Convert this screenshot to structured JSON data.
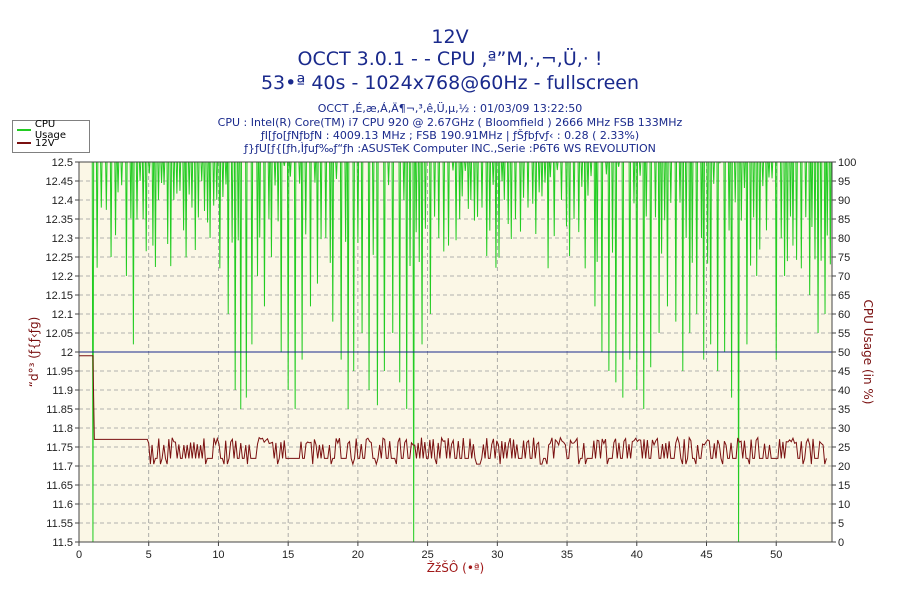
{
  "header": {
    "title_line1": "12V",
    "title_line2": "OCCT 3.0.1 -  - CPU ,ª”M,·,¬,Ü,· !",
    "title_line3": "53•ª 40s - 1024x768@60Hz - fullscreen",
    "info_line1": "OCCT ,É,æ,Á,Ä¶¬,³,ê,Ü,µ,½ : 01/03/09 13:22:50",
    "info_line2": "CPU : Intel(R) Core(TM) i7 CPU 920 @ 2.67GHz ( Bloomfield ) 2666 MHz FSB 133MHz",
    "info_line3": "ƒI[ƒo[ƒNƒbƒN : 4009.13 MHz ; FSB 190.91MHz | ƒŠƒbƒvƒ‹ : 0.28 ( 2.33%)",
    "info_line4": "ƒ}ƒU[ƒ{[ƒh,Ìƒuƒ‰ƒ“ƒh :ASUSTeK Computer INC.,Serie :P6T6 WS REVOLUTION"
  },
  "legend": {
    "items": [
      {
        "label": "CPU Usage",
        "color": "#22cc22"
      },
      {
        "label": "12V",
        "color": "#7a1010"
      }
    ]
  },
  "chart_data": {
    "type": "line",
    "title": "12V",
    "xlabel": "ŽžŠÔ (•ª)",
    "ylabel_left": "“d°³ (ƒ{ƒ‹ƒg)",
    "ylabel_right": "CPU Usage (in %)",
    "xlim": [
      0,
      54
    ],
    "x_ticks": [
      0,
      5,
      10,
      15,
      20,
      25,
      30,
      35,
      40,
      45,
      50
    ],
    "ylim_left": [
      11.5,
      12.5
    ],
    "y_ticks_left": [
      11.5,
      11.55,
      11.6,
      11.65,
      11.7,
      11.75,
      11.8,
      11.85,
      11.9,
      11.95,
      12,
      12.05,
      12.1,
      12.15,
      12.2,
      12.25,
      12.3,
      12.35,
      12.4,
      12.45,
      12.5
    ],
    "ylim_right": [
      0,
      100
    ],
    "y_ticks_right": [
      0,
      5,
      10,
      15,
      20,
      25,
      30,
      35,
      40,
      45,
      50,
      55,
      60,
      65,
      70,
      75,
      80,
      85,
      90,
      95,
      100
    ],
    "reference_line": {
      "axis": "left",
      "value": 12.0,
      "color": "#1a2a8c"
    },
    "grid": true,
    "legend_position": "top-left",
    "background": "#fbf7e6",
    "series": [
      {
        "name": "12V",
        "axis": "left",
        "color": "#7a1010",
        "points": [
          [
            0,
            11.99
          ],
          [
            1,
            11.99
          ],
          [
            1.05,
            11.88
          ],
          [
            1.1,
            11.77
          ],
          [
            4.9,
            11.77
          ],
          [
            5.0,
            11.72
          ],
          [
            24.0,
            11.72
          ],
          [
            24.05,
            11.7
          ],
          [
            54,
            11.72
          ]
        ],
        "ripple": {
          "baseline": 11.72,
          "peaks": [
            11.74,
            11.77
          ],
          "description": "dense oscillation between ~11.71 and ~11.77 from 5 to 54 min"
        }
      },
      {
        "name": "CPU Usage",
        "axis": "right",
        "color": "#22cc22",
        "baseline": 100,
        "dips": [
          [
            1,
            0
          ],
          [
            1.6,
            88
          ],
          [
            2.3,
            75
          ],
          [
            2.8,
            92
          ],
          [
            3.4,
            70
          ],
          [
            3.9,
            52
          ],
          [
            4.6,
            85
          ],
          [
            5.3,
            78
          ],
          [
            6.1,
            94
          ],
          [
            6.8,
            90
          ],
          [
            7.5,
            82
          ],
          [
            8.1,
            88
          ],
          [
            8.8,
            95
          ],
          [
            9.4,
            80
          ],
          [
            10.1,
            72
          ],
          [
            10.7,
            60
          ],
          [
            11.2,
            40
          ],
          [
            11.6,
            35
          ],
          [
            12.0,
            38
          ],
          [
            12.4,
            52
          ],
          [
            12.8,
            70
          ],
          [
            13.3,
            62
          ],
          [
            13.8,
            75
          ],
          [
            14.5,
            50
          ],
          [
            15.0,
            40
          ],
          [
            15.5,
            35
          ],
          [
            16.0,
            48
          ],
          [
            16.6,
            62
          ],
          [
            17.1,
            68
          ],
          [
            17.7,
            80
          ],
          [
            18.2,
            58
          ],
          [
            18.8,
            48
          ],
          [
            19.3,
            35
          ],
          [
            19.7,
            45
          ],
          [
            20.3,
            55
          ],
          [
            20.8,
            40
          ],
          [
            21.4,
            36
          ],
          [
            21.9,
            45
          ],
          [
            22.5,
            55
          ],
          [
            23.0,
            42
          ],
          [
            23.5,
            35
          ],
          [
            24.0,
            0
          ],
          [
            24.6,
            52
          ],
          [
            25.2,
            60
          ],
          [
            25.8,
            80
          ],
          [
            26.5,
            78
          ],
          [
            27.3,
            85
          ],
          [
            28.1,
            90
          ],
          [
            28.9,
            88
          ],
          [
            29.7,
            94
          ],
          [
            30.5,
            90
          ],
          [
            31.3,
            85
          ],
          [
            32.2,
            88
          ],
          [
            33.0,
            92
          ],
          [
            33.8,
            96
          ],
          [
            34.6,
            90
          ],
          [
            35.5,
            85
          ],
          [
            36.3,
            72
          ],
          [
            37.0,
            62
          ],
          [
            37.5,
            50
          ],
          [
            38.0,
            45
          ],
          [
            38.5,
            42
          ],
          [
            39.0,
            38
          ],
          [
            39.5,
            48
          ],
          [
            40.0,
            40
          ],
          [
            40.5,
            35
          ],
          [
            41.0,
            46
          ],
          [
            41.6,
            55
          ],
          [
            42.2,
            62
          ],
          [
            42.8,
            58
          ],
          [
            43.3,
            45
          ],
          [
            43.8,
            55
          ],
          [
            44.3,
            60
          ],
          [
            44.8,
            48
          ],
          [
            45.3,
            52
          ],
          [
            45.8,
            45
          ],
          [
            46.3,
            50
          ],
          [
            46.8,
            38
          ],
          [
            47.3,
            0
          ],
          [
            47.9,
            52
          ],
          [
            48.6,
            70
          ],
          [
            49.3,
            82
          ],
          [
            50.0,
            48
          ],
          [
            50.6,
            70
          ],
          [
            51.2,
            78
          ],
          [
            51.8,
            72
          ],
          [
            52.4,
            65
          ],
          [
            53.0,
            55
          ],
          [
            53.5,
            60
          ]
        ]
      }
    ]
  }
}
